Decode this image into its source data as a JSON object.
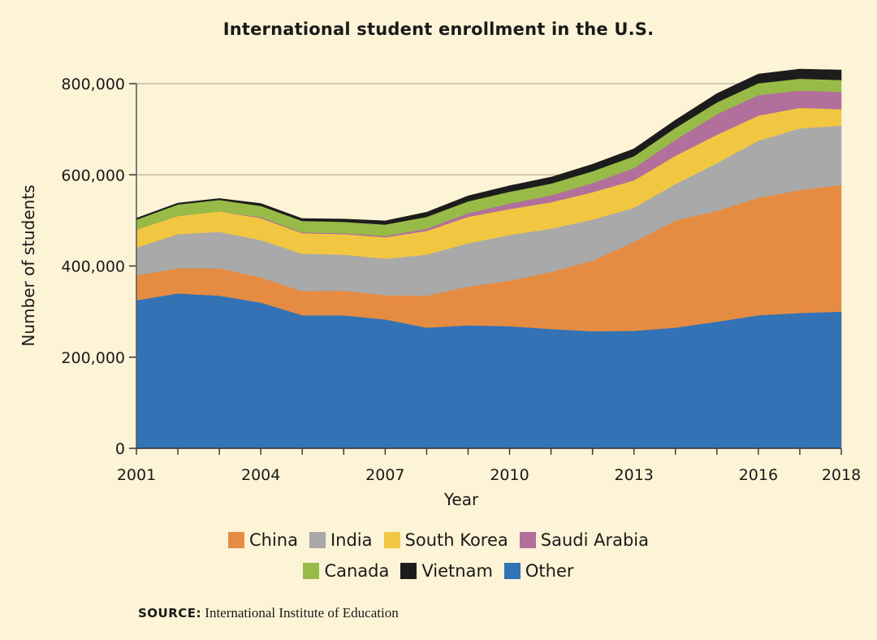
{
  "chart_data": {
    "type": "area",
    "stacked": true,
    "title": "International student enrollment in the U.S.",
    "xlabel": "Year",
    "ylabel": "Number of students",
    "xlim": [
      2001,
      2018
    ],
    "ylim": [
      0,
      800000
    ],
    "x_ticks": [
      2001,
      2004,
      2007,
      2010,
      2013,
      2016,
      2018
    ],
    "y_ticks": [
      {
        "value": 0,
        "label": "0"
      },
      {
        "value": 200000,
        "label": "200,000"
      },
      {
        "value": 400000,
        "label": "400,000"
      },
      {
        "value": 600000,
        "label": "600,000"
      },
      {
        "value": 800000,
        "label": "800,000"
      }
    ],
    "x": [
      2001,
      2002,
      2003,
      2004,
      2005,
      2006,
      2007,
      2008,
      2009,
      2010,
      2011,
      2012,
      2013,
      2014,
      2015,
      2016,
      2017,
      2018
    ],
    "series": [
      {
        "name": "Other",
        "color": "#3373b5",
        "values": [
          325000,
          340000,
          335000,
          320000,
          292000,
          292000,
          283000,
          265000,
          270000,
          268000,
          262000,
          257000,
          258000,
          265000,
          278000,
          292000,
          297000,
          300000
        ]
      },
      {
        "name": "China",
        "color": "#e68c42",
        "values": [
          55000,
          55000,
          60000,
          55000,
          53000,
          54000,
          53000,
          70000,
          85000,
          100000,
          125000,
          155000,
          195000,
          235000,
          243000,
          258000,
          270000,
          278000
        ]
      },
      {
        "name": "India",
        "color": "#a9a9a9",
        "values": [
          60000,
          75000,
          80000,
          82000,
          82000,
          79000,
          80000,
          90000,
          95000,
          100000,
          95000,
          90000,
          75000,
          80000,
          105000,
          125000,
          135000,
          130000
        ]
      },
      {
        "name": "South Korea",
        "color": "#f1c741",
        "values": [
          40000,
          40000,
          45000,
          48000,
          45000,
          45000,
          47000,
          52000,
          58000,
          57000,
          58000,
          60000,
          60000,
          62000,
          62000,
          55000,
          45000,
          36000
        ]
      },
      {
        "name": "Saudi Arabia",
        "color": "#b0709b",
        "values": [
          0,
          0,
          0,
          2000,
          2000,
          2000,
          3000,
          5000,
          8000,
          12000,
          15000,
          20000,
          27000,
          35000,
          45000,
          45000,
          38000,
          38000
        ]
      },
      {
        "name": "Canada",
        "color": "#98bb48",
        "values": [
          22000,
          25000,
          25000,
          25000,
          25000,
          25000,
          25000,
          26000,
          26000,
          26000,
          26000,
          26000,
          26000,
          26000,
          26000,
          26000,
          26000,
          26000
        ]
      },
      {
        "name": "Vietnam",
        "color": "#1c1c1c",
        "values": [
          3000,
          3000,
          3000,
          5000,
          5000,
          6000,
          8000,
          10000,
          12000,
          13000,
          14000,
          15000,
          16000,
          17000,
          19000,
          20000,
          21000,
          22000
        ]
      }
    ],
    "legend": [
      [
        "China",
        "India",
        "South Korea",
        "Saudi Arabia"
      ],
      [
        "Canada",
        "Vietnam",
        "Other"
      ]
    ],
    "legend_placement": "bottom",
    "grid": "horizontal"
  },
  "source": {
    "label": "SOURCE:",
    "text": "International Institute of Education"
  }
}
